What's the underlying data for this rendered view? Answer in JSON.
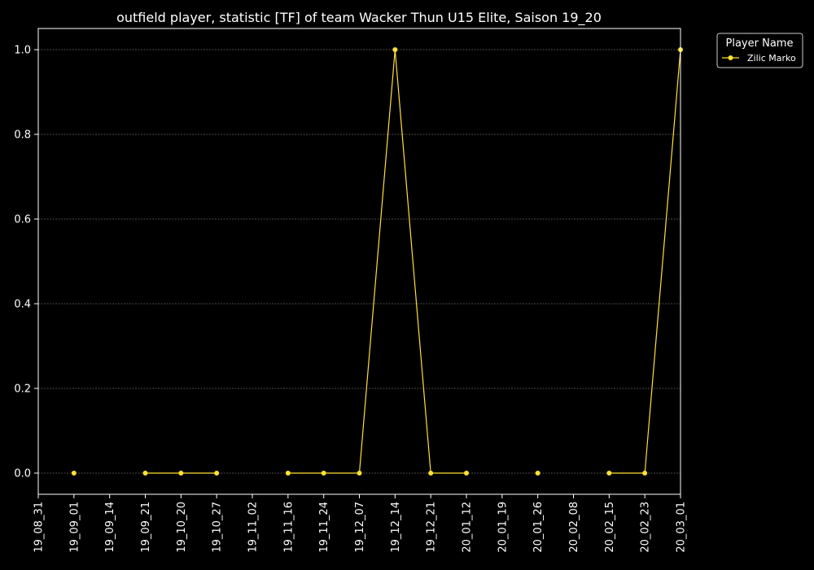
{
  "chart_data": {
    "type": "line",
    "title": "outfield player, statistic [TF] of team Wacker Thun U15 Elite, Saison 19_20",
    "xlabel": "",
    "ylabel": "",
    "x_ticks": [
      "19_08_31",
      "19_09_01",
      "19_09_14",
      "19_09_21",
      "19_10_20",
      "19_10_27",
      "19_11_02",
      "19_11_16",
      "19_11_24",
      "19_12_07",
      "19_12_14",
      "19_12_21",
      "20_01_12",
      "20_01_19",
      "20_01_26",
      "20_02_08",
      "20_02_15",
      "20_02_23",
      "20_03_01"
    ],
    "y_ticks": [
      "0.0",
      "0.2",
      "0.4",
      "0.6",
      "0.8",
      "1.0"
    ],
    "ylim": [
      -0.05,
      1.05
    ],
    "grid": true,
    "legend": {
      "title": "Player Name",
      "placement": "outside-top-right"
    },
    "series": [
      {
        "name": "Zilic Marko",
        "color": "#ffe135",
        "points": [
          {
            "x": "19_09_01",
            "y": 0
          },
          {
            "x": "19_09_21",
            "y": 0
          },
          {
            "x": "19_10_20",
            "y": 0
          },
          {
            "x": "19_10_27",
            "y": 0
          },
          {
            "x": "19_11_16",
            "y": 0
          },
          {
            "x": "19_11_24",
            "y": 0
          },
          {
            "x": "19_12_07",
            "y": 0
          },
          {
            "x": "19_12_14",
            "y": 1
          },
          {
            "x": "19_12_21",
            "y": 0
          },
          {
            "x": "20_01_12",
            "y": 0
          },
          {
            "x": "20_01_26",
            "y": 0
          },
          {
            "x": "20_02_15",
            "y": 0
          },
          {
            "x": "20_02_23",
            "y": 0
          },
          {
            "x": "20_03_01",
            "y": 1
          }
        ],
        "segments": [
          [
            "19_09_21",
            "19_10_20",
            "19_10_27"
          ],
          [
            "19_11_16",
            "19_11_24",
            "19_12_07",
            "19_12_14",
            "19_12_21",
            "20_01_12"
          ],
          [
            "20_02_15",
            "20_02_23",
            "20_03_01"
          ]
        ]
      }
    ]
  }
}
